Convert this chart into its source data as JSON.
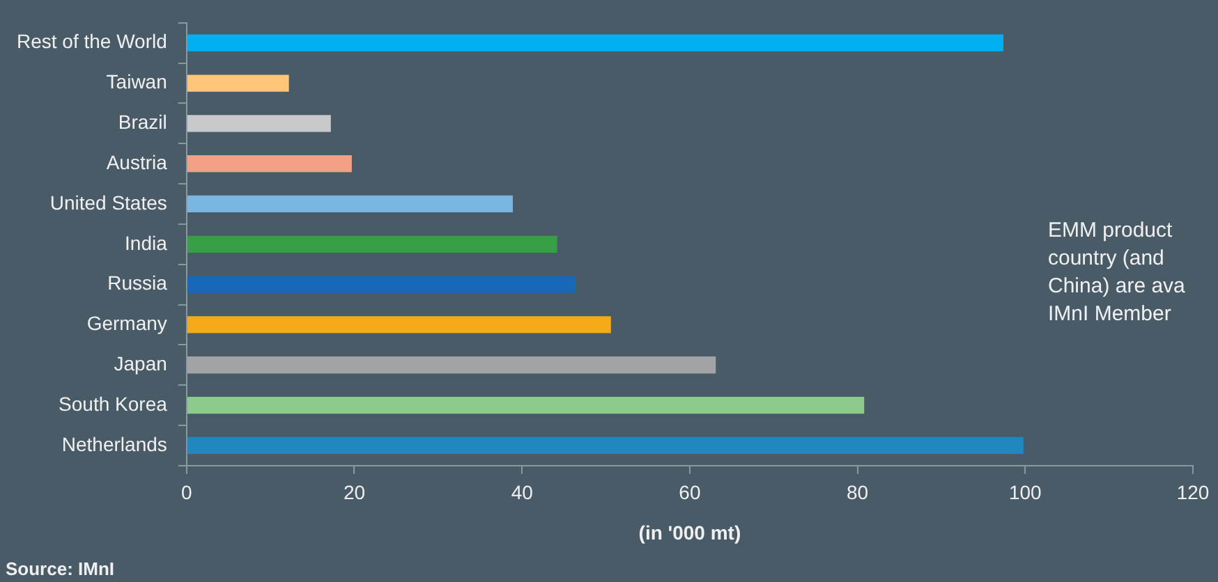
{
  "chart_data": {
    "type": "bar",
    "orientation": "horizontal",
    "xlabel": "(in '000 mt)",
    "categories": [
      "Rest of the World",
      "Taiwan",
      "Brazil",
      "Austria",
      "United States",
      "India",
      "Russia",
      "Germany",
      "Japan",
      "South Korea",
      "Netherlands"
    ],
    "values": [
      97.4,
      12.2,
      17.2,
      19.7,
      38.9,
      44.2,
      46.4,
      50.6,
      63.1,
      80.8,
      99.8
    ],
    "colors": [
      "#00b0f0",
      "#ffc67a",
      "#c8c9cb",
      "#f4a085",
      "#79b6e2",
      "#37a047",
      "#1769b8",
      "#f5ab18",
      "#a2a3a7",
      "#8ccb8d",
      "#2187c0"
    ],
    "xlim": [
      0,
      120
    ],
    "xticks": [
      0,
      20,
      40,
      60,
      80,
      100,
      120
    ],
    "grid": false,
    "legend": false,
    "annotations": [
      "EMM product",
      "country (and",
      "China) are ava",
      "IMnI Member",
      "Source: IMnI"
    ]
  }
}
